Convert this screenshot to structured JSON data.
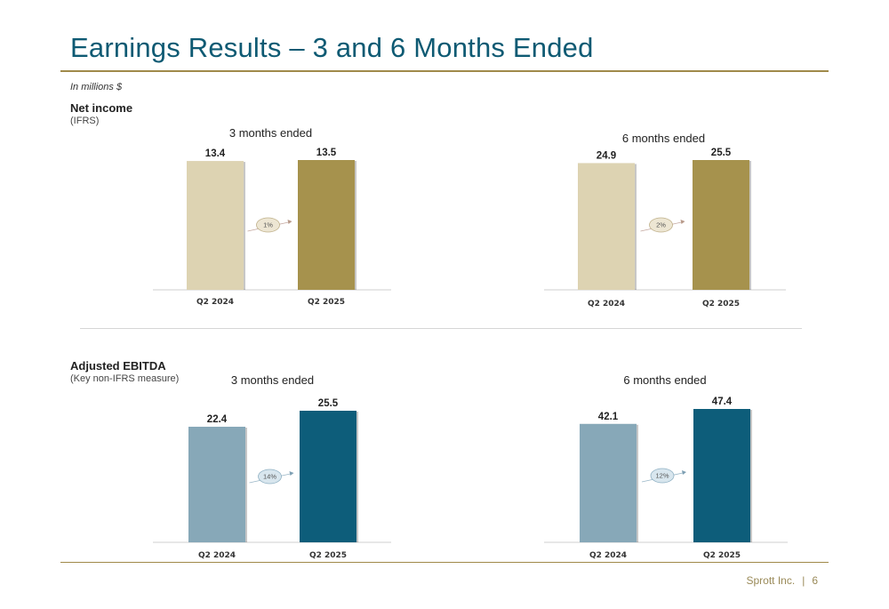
{
  "page": {
    "title": "Earnings Results – 3 and 6 Months Ended",
    "units": "In millions $",
    "footer": {
      "company": "Sprott Inc.",
      "separator": "|",
      "page_number": "6"
    }
  },
  "sections": {
    "net_income": {
      "label": "Net income",
      "sub": "(IFRS)"
    },
    "ebitda": {
      "label": "Adjusted EBITDA",
      "sub": "(Key non-IFRS measure)"
    }
  },
  "colors": {
    "title": "#0e5a73",
    "rule": "#a08a4a",
    "net_income_prior": "#ddd3b2",
    "net_income_current": "#a6924d",
    "ebitda_prior": "#87a8b8",
    "ebitda_current": "#0d5d7a"
  },
  "chart_data": [
    {
      "type": "bar",
      "section": "net_income",
      "title": "3 months ended",
      "categories": [
        "Q2 2024",
        "Q2 2025"
      ],
      "values": [
        13.4,
        13.5
      ],
      "value_labels": [
        "13.4",
        "13.5"
      ],
      "change_label": "1%",
      "ylim": [
        0,
        13.5
      ],
      "colors": [
        "#ddd3b2",
        "#a6924d"
      ],
      "grid": false
    },
    {
      "type": "bar",
      "section": "net_income",
      "title": "6 months ended",
      "categories": [
        "Q2 2024",
        "Q2 2025"
      ],
      "values": [
        24.9,
        25.5
      ],
      "value_labels": [
        "24.9",
        "25.5"
      ],
      "change_label": "2%",
      "ylim": [
        0,
        25.5
      ],
      "colors": [
        "#ddd3b2",
        "#a6924d"
      ],
      "grid": false
    },
    {
      "type": "bar",
      "section": "ebitda",
      "title": "3 months ended",
      "categories": [
        "Q2 2024",
        "Q2 2025"
      ],
      "values": [
        22.4,
        25.5
      ],
      "value_labels": [
        "22.4",
        "25.5"
      ],
      "change_label": "14%",
      "ylim": [
        0,
        25.5
      ],
      "colors": [
        "#87a8b8",
        "#0d5d7a"
      ],
      "grid": false
    },
    {
      "type": "bar",
      "section": "ebitda",
      "title": "6 months ended",
      "categories": [
        "Q2 2024",
        "Q2 2025"
      ],
      "values": [
        42.1,
        47.4
      ],
      "value_labels": [
        "42.1",
        "47.4"
      ],
      "change_label": "12%",
      "ylim": [
        0,
        47.4
      ],
      "colors": [
        "#87a8b8",
        "#0d5d7a"
      ],
      "grid": false
    }
  ]
}
